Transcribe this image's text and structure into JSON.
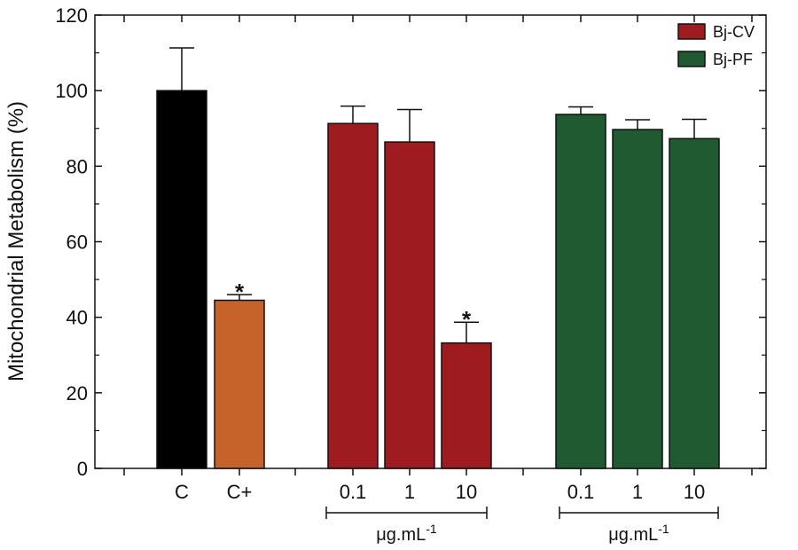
{
  "chart_data": {
    "type": "bar",
    "title": "",
    "xlabel": "",
    "ylabel": "Mitochondrial Metabolism (%)",
    "ylim": [
      0,
      120
    ],
    "yticks": [
      "0",
      "20",
      "40",
      "60",
      "80",
      "100",
      "120"
    ],
    "grid": false,
    "legend_position": "top-right",
    "legend": [
      {
        "label": "Bj-CV",
        "color": "#9e1c20"
      },
      {
        "label": "Bj-PF",
        "color": "#1f5a30"
      }
    ],
    "categories": [
      "C",
      "C+",
      "0.1",
      "1",
      "10",
      "0.1",
      "1",
      "10"
    ],
    "values": [
      100,
      44.5,
      91.3,
      86.4,
      33.2,
      93.7,
      89.7,
      87.3
    ],
    "errors": [
      11.3,
      1.5,
      4.6,
      8.6,
      5.5,
      2.0,
      2.6,
      5.1
    ],
    "bar_colors": [
      "#000000",
      "#c6632a",
      "#9e1c20",
      "#9e1c20",
      "#9e1c20",
      "#1f5a30",
      "#1f5a30",
      "#1f5a30"
    ],
    "significance": [
      "",
      "*",
      "",
      "",
      "*",
      "",
      "",
      ""
    ],
    "concentration_unit": "μg.mL",
    "concentration_unit_exponent": "-1",
    "groups": [
      {
        "name": "Bj-CV",
        "unit": "μg.mL-1"
      },
      {
        "name": "Bj-PF",
        "unit": "μg.mL-1"
      }
    ]
  }
}
